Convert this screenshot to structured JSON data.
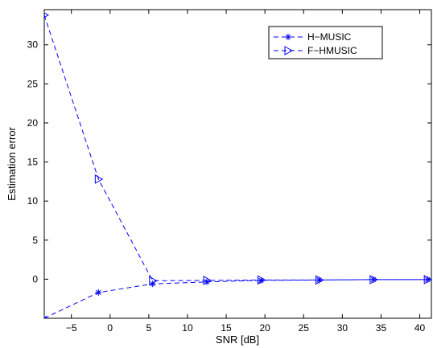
{
  "chart_data": {
    "type": "line",
    "title": "",
    "xlabel": "SNR [dB]",
    "ylabel": "Estimation error",
    "xlim": [
      -8.5,
      41.5
    ],
    "ylim": [
      -5,
      34.5
    ],
    "xticks": [
      -5,
      0,
      5,
      10,
      15,
      20,
      25,
      30,
      35,
      40
    ],
    "yticks": [
      0,
      5,
      10,
      15,
      20,
      25,
      30
    ],
    "grid": false,
    "legend_position": "top-right",
    "colors": {
      "series": "#0000ff",
      "axes": "#000000"
    },
    "series": [
      {
        "name": "H−MUSIC",
        "marker": "asterisk",
        "line_style": "dashed",
        "x": [
          -8.5,
          -1.5,
          5.5,
          12.5,
          19.5,
          27,
          34,
          41
        ],
        "y": [
          -5,
          -1.7,
          -0.6,
          -0.35,
          -0.15,
          -0.1,
          -0.05,
          -0.05
        ]
      },
      {
        "name": "F−HMUSIC",
        "marker": "triangle-right",
        "line_style": "dashed",
        "x": [
          -8.5,
          -1.5,
          5.5,
          12.5,
          19.5,
          27,
          34,
          41
        ],
        "y": [
          33.8,
          12.8,
          -0.2,
          -0.15,
          -0.1,
          -0.1,
          -0.05,
          -0.05
        ]
      }
    ]
  }
}
